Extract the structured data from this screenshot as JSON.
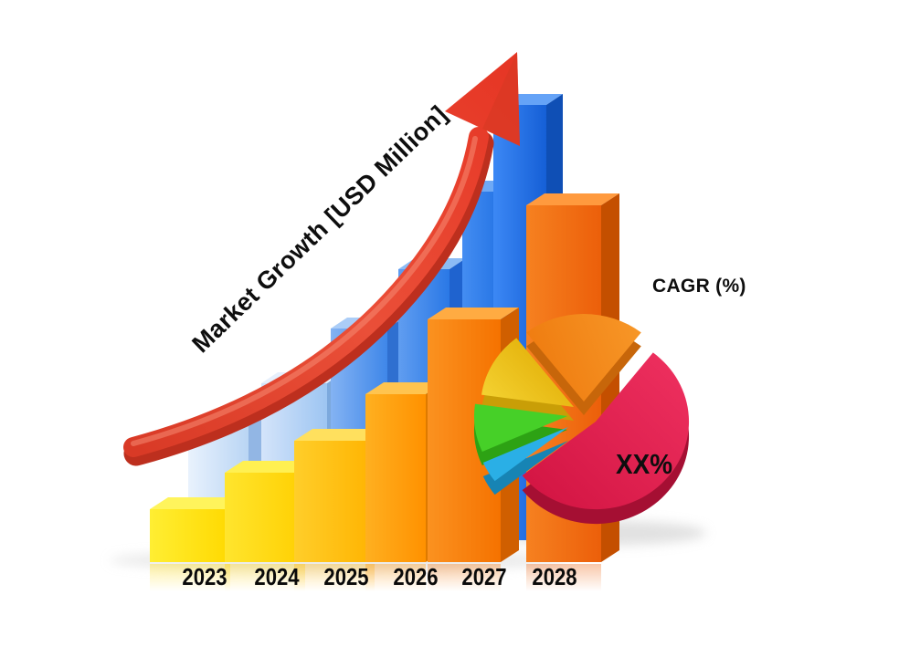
{
  "title": {
    "text": "Market Growth [USD Million]"
  },
  "pie": {
    "label": "CAGR (%)",
    "value": "XX%"
  },
  "chart_data": [
    {
      "type": "bar",
      "title": "Market Growth [USD Million]",
      "categories": [
        "2023",
        "2024",
        "2025",
        "2026",
        "2027",
        "2028"
      ],
      "series": [
        {
          "name": "back-blue-bars",
          "relative_heights": [
            125,
            172,
            232,
            297,
            382,
            477
          ]
        },
        {
          "name": "front-yellow-orange-bars",
          "relative_heights": [
            58,
            98,
            133,
            184,
            266,
            391
          ]
        }
      ],
      "ylabel": "Market Growth [USD Million]",
      "axis": "none (illustrative 3D bars, no numeric scale shown)",
      "grid": "off",
      "legend": "none"
    },
    {
      "type": "pie",
      "title": "CAGR (%)",
      "center_label": "XX%",
      "slices": [
        {
          "name": "red",
          "estimated_share": 54,
          "color": "#e61e4d"
        },
        {
          "name": "orange",
          "estimated_share": 20,
          "color": "#f68b1f"
        },
        {
          "name": "yellow",
          "estimated_share": 12,
          "color": "#f2c41d"
        },
        {
          "name": "green",
          "estimated_share": 9,
          "color": "#46d028"
        },
        {
          "name": "blue",
          "estimated_share": 5,
          "color": "#2aafe6"
        }
      ],
      "legend": "none",
      "style": "3D exploded"
    }
  ],
  "colors": {
    "background": "#ffffff",
    "text": "#0e0e0e",
    "arrow": {
      "main": "#e8432f",
      "dark": "#bd2f1e",
      "highlight": "#f58a72"
    },
    "bars": {
      "back": [
        {
          "face1": "#e9f2fd",
          "face2": "#b9d5f4",
          "top": "#f4f9ff",
          "side": "#92b6e4"
        },
        {
          "face1": "#d4e4fa",
          "face2": "#9dc5f2",
          "top": "#e6effc",
          "side": "#7ca9dd"
        },
        {
          "face1": "#84b3f3",
          "face2": "#3f87e9",
          "top": "#abcdf7",
          "side": "#2f6fd0"
        },
        {
          "face1": "#609df0",
          "face2": "#2a78e6",
          "top": "#8cbbf5",
          "side": "#1f63cf"
        },
        {
          "face1": "#448df2",
          "face2": "#1b6ce0",
          "top": "#6ea9f5",
          "side": "#1557c2"
        },
        {
          "face1": "#3c88f5",
          "face2": "#155fd6",
          "top": "#65a3f7",
          "side": "#0f4fb5"
        }
      ],
      "front": [
        {
          "face1": "#ffee33",
          "face2": "#ffd900",
          "top": "#fff45c",
          "side": "#e0b400"
        },
        {
          "face1": "#ffe52e",
          "face2": "#ffcf00",
          "top": "#fff051",
          "side": "#dcae00"
        },
        {
          "face1": "#ffce2a",
          "face2": "#ffb300",
          "top": "#ffe05e",
          "side": "#e09500"
        },
        {
          "face1": "#ffb020",
          "face2": "#ff9100",
          "top": "#ffc44f",
          "side": "#de7a00"
        },
        {
          "face1": "#fb9220",
          "face2": "#f57200",
          "top": "#ffab42",
          "side": "#d05f00"
        },
        {
          "face1": "#f68120",
          "face2": "#ec5f0a",
          "top": "#ff9a3e",
          "side": "#c44f00"
        }
      ]
    },
    "pie": {
      "red": {
        "face": "#e61e4d",
        "face2": "#d01240",
        "side": "#a50f33"
      },
      "orange": {
        "face": "#f89a2a",
        "face2": "#ef7c10",
        "side": "#c7660a"
      },
      "yellow": {
        "face": "#f2c41d",
        "face2": "#e3b008",
        "side": "#c99e07"
      },
      "green": {
        "face": "#46d028",
        "face2": "#35c718",
        "side": "#2da214"
      },
      "blue": {
        "face": "#2aafe6",
        "face2": "#2aafe6",
        "side": "#1784b4"
      }
    }
  }
}
